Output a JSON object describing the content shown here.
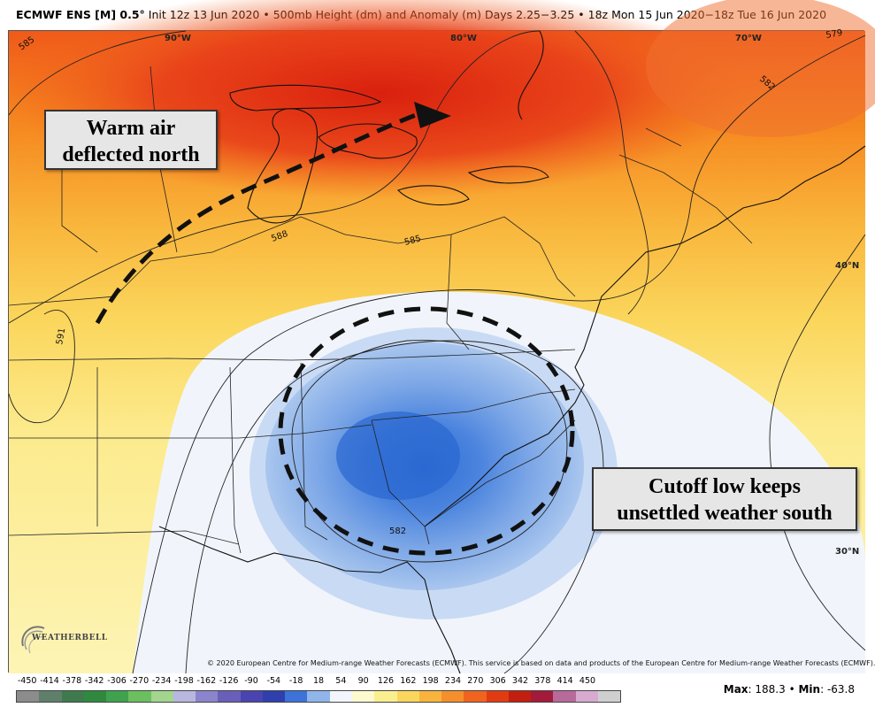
{
  "title": {
    "model": "ECMWF ENS [M] 0.5°",
    "init": "Init 12z 13 Jun 2020",
    "field": "500mb Height (dm) and Anomaly (m)",
    "range": "Days 2.25−3.25 • 18z Mon 15 Jun 2020−18z Tue 16 Jun 2020",
    "separator": "•"
  },
  "annotations": {
    "warm": [
      "Warm air",
      "deflected north"
    ],
    "low": [
      "Cutoff low keeps",
      "unsettled weather south"
    ]
  },
  "coordinates": {
    "lon_90": "90°W",
    "lon_80": "80°W",
    "lon_70": "70°W",
    "lat_40": "40°N",
    "lat_30": "30°N"
  },
  "contour_labels": {
    "c585_nw": "585",
    "c591": "591",
    "c588": "588",
    "c585_mid": "585",
    "c582": "582",
    "c579": "579",
    "c582_low": "582"
  },
  "copyright": "© 2020 European Centre for Medium-range Weather Forecasts (ECMWF). This service is based on data and products of the European Centre for Medium-range Weather Forecasts (ECMWF).",
  "logo_text": "WEATHERBELL",
  "legend": {
    "labels": [
      "-450",
      "-414",
      "-378",
      "-342",
      "-306",
      "-270",
      "-234",
      "-198",
      "-162",
      "-126",
      "-90",
      "-54",
      "-18",
      "18",
      "54",
      "90",
      "126",
      "162",
      "198",
      "234",
      "270",
      "306",
      "342",
      "378",
      "414",
      "450"
    ],
    "colors": [
      "#8c8c8c",
      "#5f7f6a",
      "#3f7a4f",
      "#2f8a3f",
      "#3fa24f",
      "#6cbf5f",
      "#a3d58f",
      "#b7b7e0",
      "#8a85cc",
      "#6a5fb8",
      "#4a44b0",
      "#2f3fae",
      "#3d72d8",
      "#8fb5ea",
      "#f2f6fc",
      "#fdfad0",
      "#fbee8f",
      "#fbd65c",
      "#f8b43d",
      "#f58f2c",
      "#f0641e",
      "#e23b12",
      "#c21f10",
      "#a31a3a",
      "#b86a9a",
      "#d8aad0",
      "#cfcfcf"
    ],
    "max_label": "Max",
    "max_value": "188.3",
    "min_label": "Min",
    "min_value": "-63.8"
  }
}
